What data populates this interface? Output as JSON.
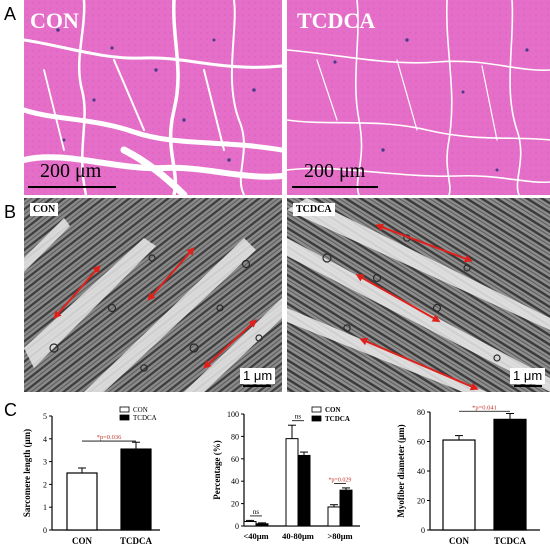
{
  "panels": {
    "a": {
      "letter": "A",
      "images": [
        {
          "label": "CON",
          "scale_bar": "200 μm"
        },
        {
          "label": "TCDCA",
          "scale_bar": "200 μm"
        }
      ]
    },
    "b": {
      "letter": "B",
      "images": [
        {
          "label": "CON",
          "scale_bar": "1 μm"
        },
        {
          "label": "TCDCA",
          "scale_bar": "1 μm"
        }
      ]
    },
    "c": {
      "letter": "C"
    }
  },
  "colors": {
    "he_tissue": "#e56fc8",
    "he_background": "#ffffff",
    "tem_gray": "#7d7d7d",
    "arrow_red": "#e0201b",
    "con_bar": "#ffffff",
    "tcdca_bar": "#000000",
    "significance": "#c0392b"
  },
  "chart_data": [
    {
      "type": "bar",
      "ylabel": "Sarcomere length (μm)",
      "categories": [
        "CON",
        "TCDCA"
      ],
      "values": [
        2.5,
        3.55
      ],
      "errors": [
        0.22,
        0.3
      ],
      "ylim": [
        0,
        5
      ],
      "yticks": [
        "0",
        "1",
        "2",
        "3",
        "4",
        "5"
      ],
      "legend": [
        "CON",
        "TCDCA"
      ],
      "legend_position": "top-right",
      "significance": "*p=0.036"
    },
    {
      "type": "bar",
      "ylabel": "Percentage (%)",
      "categories": [
        "<40μm",
        "40-80μm",
        ">80μm"
      ],
      "series": [
        {
          "name": "CON",
          "values": [
            4,
            78,
            17
          ],
          "errors": [
            1,
            12,
            2
          ]
        },
        {
          "name": "TCDCA",
          "values": [
            2,
            63,
            32
          ],
          "errors": [
            0.8,
            3,
            2
          ]
        }
      ],
      "ylim": [
        0,
        100
      ],
      "yticks": [
        "0",
        "20",
        "40",
        "60",
        "80",
        "100"
      ],
      "legend_position": "top-right",
      "significance": [
        "ns",
        "ns",
        "*p=0.029"
      ]
    },
    {
      "type": "bar",
      "ylabel": "Myofiber diameter (μm)",
      "categories": [
        "CON",
        "TCDCA"
      ],
      "values": [
        61,
        75
      ],
      "errors": [
        3,
        4
      ],
      "ylim": [
        0,
        80
      ],
      "yticks": [
        "0",
        "20",
        "40",
        "60",
        "80"
      ],
      "significance": "*p=0.041"
    }
  ]
}
